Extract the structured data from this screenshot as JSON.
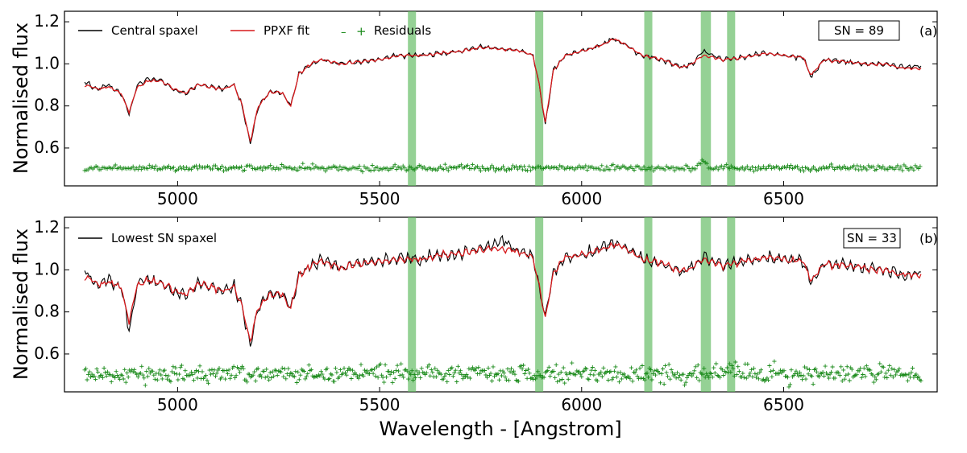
{
  "chart_data": [
    {
      "type": "line",
      "panel_tag": "(a)",
      "sn_box": "SN = 89",
      "xlabel": "",
      "ylabel": "Normalised flux",
      "xlim": [
        4720,
        6880
      ],
      "ylim": [
        0.42,
        1.25
      ],
      "x_ticks": [
        5000,
        5500,
        6000,
        6500
      ],
      "x_tick_labels": [
        "5000",
        "5500",
        "6000",
        "6500"
      ],
      "y_ticks": [
        0.6,
        0.8,
        1.0,
        1.2
      ],
      "y_tick_labels": [
        "0.6",
        "0.8",
        "1.0",
        "1.2"
      ],
      "legend": [
        {
          "label": "Central spaxel",
          "color": "#000000",
          "style": "line"
        },
        {
          "label": "PPXF fit",
          "color": "#d7191c",
          "style": "line"
        },
        {
          "label": "Residuals",
          "color": "#1a8a1a",
          "style": "markers"
        }
      ],
      "masked_regions": [
        [
          5570,
          5590
        ],
        [
          5885,
          5905
        ],
        [
          6155,
          6175
        ],
        [
          6295,
          6320
        ],
        [
          6360,
          6380
        ]
      ],
      "residual_offset": 0.505,
      "noise_level": 0.01,
      "series": [
        {
          "name": "Central spaxel",
          "x": [
            4770,
            4800,
            4830,
            4860,
            4880,
            4900,
            4930,
            4960,
            4990,
            5020,
            5050,
            5080,
            5110,
            5140,
            5160,
            5180,
            5200,
            5230,
            5260,
            5280,
            5300,
            5330,
            5360,
            5400,
            5450,
            5500,
            5550,
            5600,
            5650,
            5700,
            5750,
            5800,
            5850,
            5880,
            5895,
            5910,
            5930,
            5960,
            6000,
            6050,
            6080,
            6100,
            6150,
            6200,
            6250,
            6280,
            6300,
            6350,
            6400,
            6450,
            6500,
            6550,
            6560,
            6570,
            6600,
            6650,
            6700,
            6750,
            6800,
            6840
          ],
          "values": [
            0.91,
            0.88,
            0.9,
            0.86,
            0.76,
            0.9,
            0.93,
            0.92,
            0.88,
            0.86,
            0.9,
            0.89,
            0.88,
            0.9,
            0.8,
            0.62,
            0.8,
            0.87,
            0.86,
            0.8,
            0.95,
            1.0,
            1.02,
            1.0,
            1.01,
            1.02,
            1.04,
            1.04,
            1.05,
            1.06,
            1.08,
            1.07,
            1.06,
            1.04,
            0.9,
            0.71,
            0.97,
            1.04,
            1.06,
            1.09,
            1.12,
            1.1,
            1.04,
            1.02,
            0.98,
            1.01,
            1.06,
            1.02,
            1.03,
            1.05,
            1.04,
            1.03,
            0.97,
            0.94,
            1.02,
            1.01,
            1.0,
            1.0,
            0.98,
            0.99
          ]
        },
        {
          "name": "PPXF fit",
          "x": [
            4770,
            4800,
            4830,
            4860,
            4880,
            4900,
            4930,
            4960,
            4990,
            5020,
            5050,
            5080,
            5110,
            5140,
            5160,
            5180,
            5200,
            5230,
            5260,
            5280,
            5300,
            5330,
            5360,
            5400,
            5450,
            5500,
            5550,
            5600,
            5650,
            5700,
            5750,
            5800,
            5850,
            5880,
            5895,
            5910,
            5930,
            5960,
            6000,
            6050,
            6080,
            6100,
            6150,
            6200,
            6250,
            6280,
            6300,
            6350,
            6400,
            6450,
            6500,
            6550,
            6560,
            6570,
            6600,
            6650,
            6700,
            6750,
            6800,
            6840
          ],
          "values": [
            0.9,
            0.88,
            0.89,
            0.86,
            0.77,
            0.89,
            0.92,
            0.92,
            0.88,
            0.86,
            0.9,
            0.89,
            0.88,
            0.9,
            0.8,
            0.63,
            0.8,
            0.87,
            0.86,
            0.8,
            0.95,
            1.0,
            1.02,
            1.0,
            1.01,
            1.02,
            1.04,
            1.04,
            1.05,
            1.06,
            1.08,
            1.07,
            1.06,
            1.04,
            0.9,
            0.72,
            0.97,
            1.04,
            1.06,
            1.09,
            1.12,
            1.1,
            1.04,
            1.02,
            0.98,
            1.01,
            1.04,
            1.02,
            1.03,
            1.05,
            1.04,
            1.03,
            0.97,
            0.95,
            1.02,
            1.01,
            1.0,
            1.0,
            0.98,
            0.98
          ]
        }
      ]
    },
    {
      "type": "line",
      "panel_tag": "(b)",
      "sn_box": "SN = 33",
      "xlabel": "Wavelength - [Angstrom]",
      "ylabel": "Normalised flux",
      "xlim": [
        4720,
        6880
      ],
      "ylim": [
        0.42,
        1.25
      ],
      "x_ticks": [
        5000,
        5500,
        6000,
        6500
      ],
      "x_tick_labels": [
        "5000",
        "5500",
        "6000",
        "6500"
      ],
      "y_ticks": [
        0.6,
        0.8,
        1.0,
        1.2
      ],
      "y_tick_labels": [
        "0.6",
        "0.8",
        "1.0",
        "1.2"
      ],
      "legend": [
        {
          "label": "Lowest SN spaxel",
          "color": "#000000",
          "style": "line"
        }
      ],
      "masked_regions": [
        [
          5570,
          5590
        ],
        [
          5885,
          5905
        ],
        [
          6155,
          6175
        ],
        [
          6295,
          6320
        ],
        [
          6360,
          6380
        ]
      ],
      "residual_offset": 0.505,
      "noise_level": 0.03,
      "series": [
        {
          "name": "Lowest SN spaxel",
          "x": [
            4770,
            4800,
            4830,
            4860,
            4880,
            4900,
            4930,
            4960,
            4990,
            5020,
            5050,
            5080,
            5110,
            5140,
            5160,
            5180,
            5200,
            5230,
            5260,
            5280,
            5300,
            5330,
            5360,
            5400,
            5450,
            5500,
            5550,
            5600,
            5650,
            5700,
            5750,
            5800,
            5850,
            5880,
            5895,
            5910,
            5930,
            5960,
            6000,
            6050,
            6080,
            6100,
            6150,
            6200,
            6250,
            6280,
            6300,
            6350,
            6400,
            6450,
            6500,
            6550,
            6560,
            6570,
            6600,
            6650,
            6700,
            6750,
            6800,
            6840
          ],
          "values": [
            0.99,
            0.93,
            0.95,
            0.92,
            0.72,
            0.93,
            0.96,
            0.94,
            0.9,
            0.88,
            0.93,
            0.92,
            0.9,
            0.92,
            0.82,
            0.64,
            0.82,
            0.89,
            0.88,
            0.82,
            0.97,
            1.02,
            1.05,
            1.01,
            1.03,
            1.04,
            1.06,
            1.05,
            1.07,
            1.08,
            1.1,
            1.13,
            1.09,
            1.06,
            0.92,
            0.78,
            0.99,
            1.06,
            1.07,
            1.1,
            1.13,
            1.12,
            1.05,
            1.03,
            0.99,
            1.02,
            1.06,
            1.02,
            1.04,
            1.06,
            1.05,
            1.04,
            0.98,
            0.94,
            1.03,
            1.02,
            1.01,
            1.0,
            0.98,
            0.99
          ]
        },
        {
          "name": "PPXF fit",
          "x": [
            4770,
            4800,
            4830,
            4860,
            4880,
            4900,
            4930,
            4960,
            4990,
            5020,
            5050,
            5080,
            5110,
            5140,
            5160,
            5180,
            5200,
            5230,
            5260,
            5280,
            5300,
            5330,
            5360,
            5400,
            5450,
            5500,
            5550,
            5600,
            5650,
            5700,
            5750,
            5800,
            5850,
            5880,
            5895,
            5910,
            5930,
            5960,
            6000,
            6050,
            6080,
            6100,
            6150,
            6200,
            6250,
            6280,
            6300,
            6350,
            6400,
            6450,
            6500,
            6550,
            6560,
            6570,
            6600,
            6650,
            6700,
            6750,
            6800,
            6840
          ],
          "values": [
            0.97,
            0.93,
            0.94,
            0.92,
            0.75,
            0.93,
            0.95,
            0.94,
            0.9,
            0.88,
            0.93,
            0.92,
            0.9,
            0.92,
            0.82,
            0.66,
            0.82,
            0.89,
            0.88,
            0.82,
            0.97,
            1.02,
            1.04,
            1.01,
            1.03,
            1.04,
            1.05,
            1.05,
            1.07,
            1.08,
            1.1,
            1.1,
            1.08,
            1.06,
            0.92,
            0.77,
            0.99,
            1.06,
            1.07,
            1.1,
            1.12,
            1.11,
            1.05,
            1.03,
            0.99,
            1.02,
            1.05,
            1.02,
            1.04,
            1.06,
            1.05,
            1.04,
            0.98,
            0.95,
            1.03,
            1.02,
            1.01,
            1.0,
            0.98,
            0.98
          ]
        }
      ]
    }
  ],
  "colors": {
    "spectrum": "#000000",
    "fit": "#d7191c",
    "residual": "#1a8a1a",
    "mask": "#5cb85c"
  }
}
